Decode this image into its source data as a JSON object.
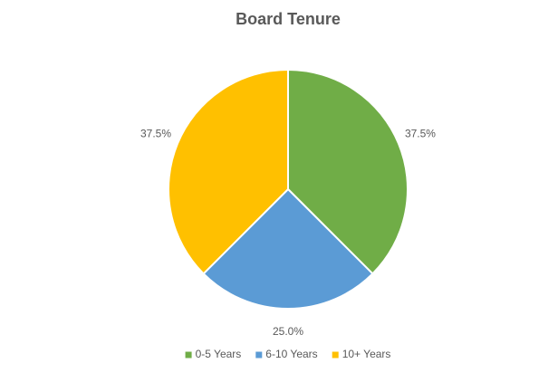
{
  "chart_data": {
    "type": "pie",
    "title": "Board Tenure",
    "categories": [
      "0-5 Years",
      "6-10 Years",
      "10+ Years"
    ],
    "series": [
      {
        "name": "Board Tenure",
        "values": [
          37.5,
          25,
          37.5
        ],
        "value_labels": [
          "37.5%",
          "25.0%",
          "37.5%"
        ]
      }
    ],
    "colors": [
      "#70ad47",
      "#5b9bd5",
      "#ffc000"
    ],
    "legend": "bottom"
  }
}
